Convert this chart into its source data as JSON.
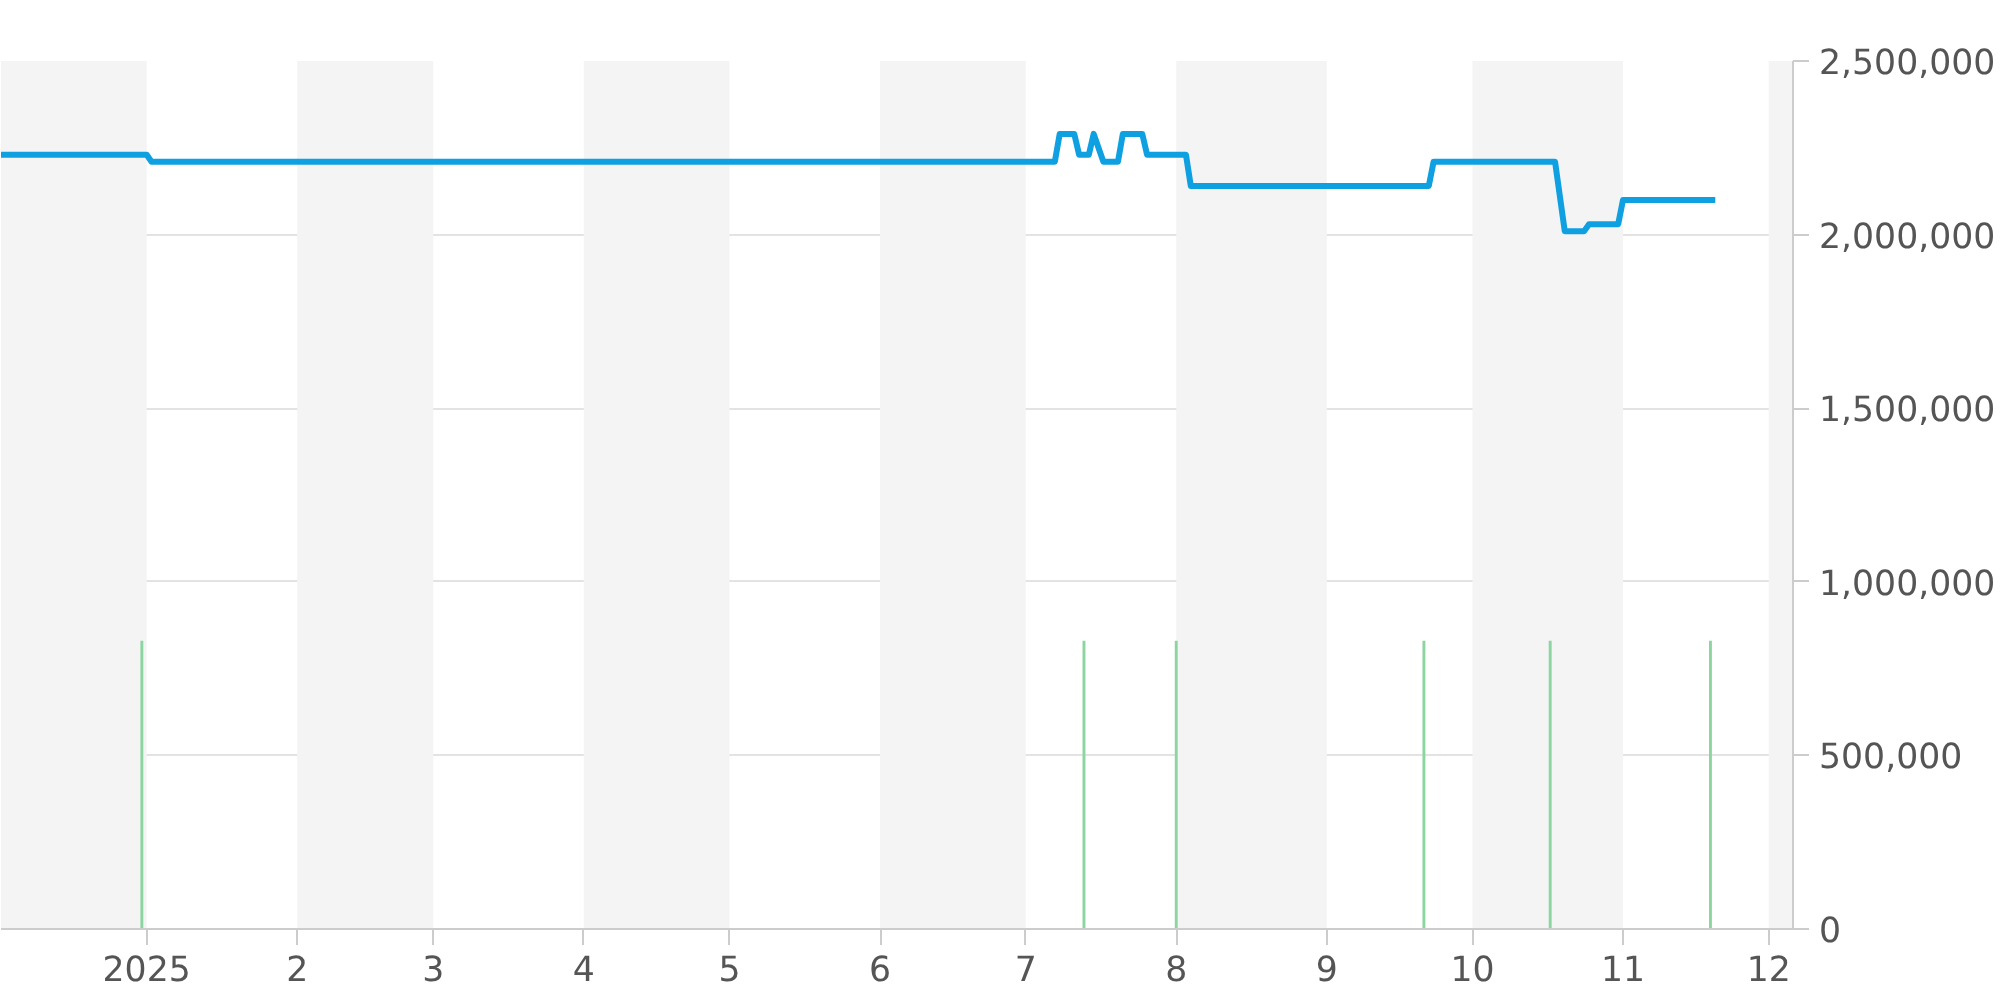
{
  "chart_data": {
    "type": "line",
    "xlim": [
      "2024-12-02",
      "2025-12-06"
    ],
    "xticks": [
      {
        "value": "2025-01-01",
        "label": "2025"
      },
      {
        "value": "2025-02-01",
        "label": "2"
      },
      {
        "value": "2025-03-01",
        "label": "3"
      },
      {
        "value": "2025-04-01",
        "label": "4"
      },
      {
        "value": "2025-05-01",
        "label": "5"
      },
      {
        "value": "2025-06-01",
        "label": "6"
      },
      {
        "value": "2025-07-01",
        "label": "7"
      },
      {
        "value": "2025-08-01",
        "label": "8"
      },
      {
        "value": "2025-09-01",
        "label": "9"
      },
      {
        "value": "2025-10-01",
        "label": "10"
      },
      {
        "value": "2025-11-01",
        "label": "11"
      },
      {
        "value": "2025-12-01",
        "label": "12"
      }
    ],
    "ylim": [
      0,
      2500000
    ],
    "yticks": [
      {
        "value": 0,
        "label": "0"
      },
      {
        "value": 500000,
        "label": "500,000"
      },
      {
        "value": 1000000,
        "label": "1,000,000"
      },
      {
        "value": 1500000,
        "label": "1,500,000"
      },
      {
        "value": 2000000,
        "label": "2,000,000"
      },
      {
        "value": 2500000,
        "label": "2,500,000"
      }
    ],
    "grid": "y",
    "bands": [
      {
        "axis": "x",
        "from": "2024-12-02",
        "to": "2025-01-01",
        "color": "#f4f4f4"
      },
      {
        "axis": "x",
        "from": "2025-02-01",
        "to": "2025-03-01",
        "color": "#f4f4f4"
      },
      {
        "axis": "x",
        "from": "2025-04-01",
        "to": "2025-05-01",
        "color": "#f4f4f4"
      },
      {
        "axis": "x",
        "from": "2025-06-01",
        "to": "2025-07-01",
        "color": "#f4f4f4"
      },
      {
        "axis": "x",
        "from": "2025-08-01",
        "to": "2025-09-01",
        "color": "#f4f4f4"
      },
      {
        "axis": "x",
        "from": "2025-10-01",
        "to": "2025-11-01",
        "color": "#f4f4f4"
      },
      {
        "axis": "x",
        "from": "2025-12-01",
        "to": "2025-12-06",
        "color": "#f4f4f4"
      }
    ],
    "series": [
      {
        "type": "bar",
        "color": "#8dd5a0",
        "x": [
          "2024-12-31",
          "2025-07-13",
          "2025-08-01",
          "2025-09-21",
          "2025-10-17",
          "2025-11-19"
        ],
        "values": [
          830000,
          830000,
          830000,
          830000,
          830000,
          830000
        ]
      },
      {
        "color": "#0ea0e1",
        "x": [
          "2024-12-02",
          "2025-01-01",
          "2025-01-02",
          "2025-07-07",
          "2025-07-08",
          "2025-07-11",
          "2025-07-12",
          "2025-07-14",
          "2025-07-15",
          "2025-07-17",
          "2025-07-20",
          "2025-07-21",
          "2025-07-25",
          "2025-07-26",
          "2025-08-03",
          "2025-08-04",
          "2025-09-22",
          "2025-09-23",
          "2025-10-18",
          "2025-10-20",
          "2025-10-24",
          "2025-10-25",
          "2025-10-31",
          "2025-11-01",
          "2025-11-20"
        ],
        "values": [
          2230000,
          2230000,
          2210000,
          2210000,
          2290000,
          2290000,
          2230000,
          2230000,
          2290000,
          2210000,
          2210000,
          2290000,
          2290000,
          2230000,
          2230000,
          2140000,
          2140000,
          2210000,
          2210000,
          2010000,
          2010000,
          2030000,
          2030000,
          2100000,
          2100000
        ]
      }
    ]
  }
}
